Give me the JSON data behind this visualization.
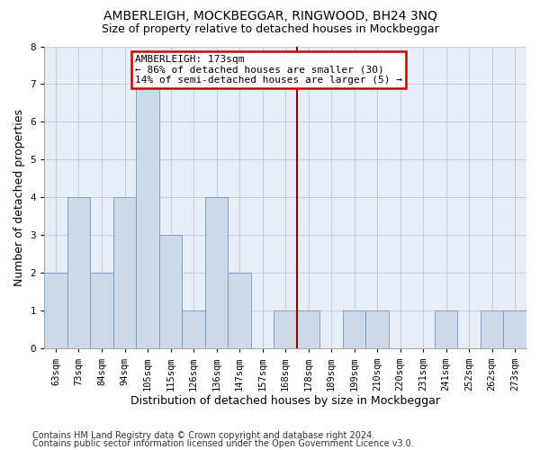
{
  "title": "AMBERLEIGH, MOCKBEGGAR, RINGWOOD, BH24 3NQ",
  "subtitle": "Size of property relative to detached houses in Mockbeggar",
  "xlabel": "Distribution of detached houses by size in Mockbeggar",
  "ylabel": "Number of detached properties",
  "footer1": "Contains HM Land Registry data © Crown copyright and database right 2024.",
  "footer2": "Contains public sector information licensed under the Open Government Licence v3.0.",
  "categories": [
    "63sqm",
    "73sqm",
    "84sqm",
    "94sqm",
    "105sqm",
    "115sqm",
    "126sqm",
    "136sqm",
    "147sqm",
    "157sqm",
    "168sqm",
    "178sqm",
    "189sqm",
    "199sqm",
    "210sqm",
    "220sqm",
    "231sqm",
    "241sqm",
    "252sqm",
    "262sqm",
    "273sqm"
  ],
  "values": [
    2,
    4,
    2,
    4,
    7,
    3,
    1,
    4,
    2,
    0,
    1,
    1,
    0,
    1,
    1,
    0,
    0,
    1,
    0,
    1,
    1
  ],
  "bar_color": "#cdd8e8",
  "bar_edge_color": "#7099c0",
  "background_color": "#e8eef8",
  "grid_color": "#c8d0e0",
  "annotation_text": "AMBERLEIGH: 173sqm\n← 86% of detached houses are smaller (30)\n14% of semi-detached houses are larger (5) →",
  "vline_color": "#8b0000",
  "ylim": [
    0,
    8
  ],
  "yticks": [
    0,
    1,
    2,
    3,
    4,
    5,
    6,
    7,
    8
  ],
  "title_fontsize": 10,
  "subtitle_fontsize": 9,
  "xlabel_fontsize": 9,
  "ylabel_fontsize": 9,
  "tick_fontsize": 7.5,
  "footer_fontsize": 7,
  "annotation_fontsize": 8
}
